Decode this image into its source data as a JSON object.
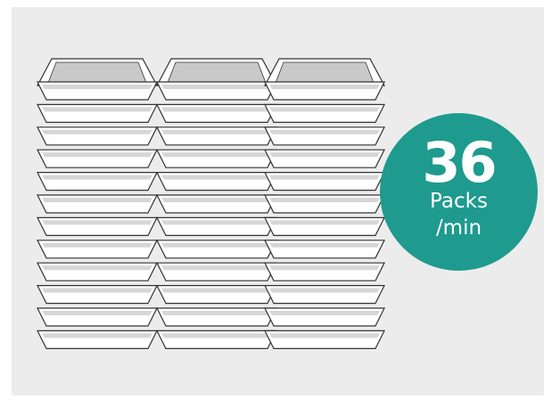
{
  "colors": {
    "background": "#ececec",
    "badge": "#1f9a8e",
    "tray_fill": "#ffffff",
    "tray_outline": "#333333",
    "tray_top_fill": "#c9c9c9"
  },
  "badge": {
    "number": "36",
    "unit_line1": "Packs",
    "unit_line2": "/min"
  },
  "stack": {
    "columns": 3,
    "rows": 12,
    "icon": "stacked-tray-icon"
  }
}
